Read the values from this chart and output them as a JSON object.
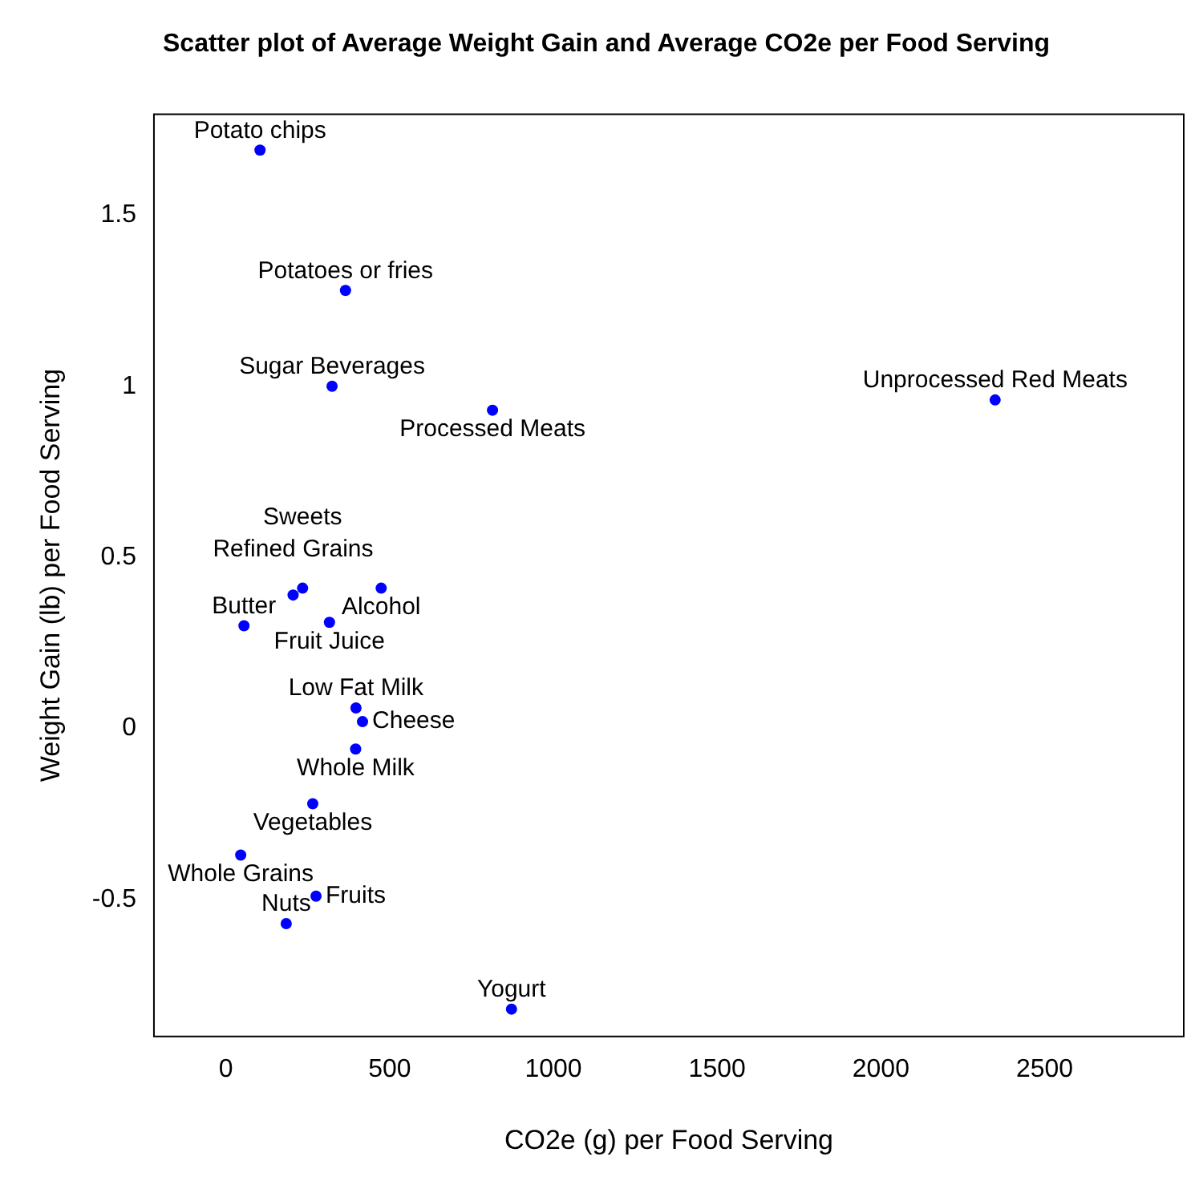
{
  "chart_data": {
    "type": "scatter",
    "title": "Scatter plot of Average Weight Gain and Average CO2e per Food Serving",
    "xlabel": "CO2e (g) per Food Serving",
    "ylabel": "Weight Gain (lb) per Food Serving",
    "x": [
      104,
      365,
      324,
      814,
      2349,
      205,
      234,
      474,
      55,
      316,
      397,
      417,
      396,
      265,
      45,
      275,
      184,
      872
    ],
    "series": [
      {
        "color": "#0000ff",
        "values": [
          1.69,
          1.28,
          1.0,
          0.93,
          0.96,
          0.39,
          0.41,
          0.41,
          0.3,
          0.31,
          0.06,
          0.02,
          -0.06,
          -0.22,
          -0.37,
          -0.49,
          -0.57,
          -0.82
        ]
      }
    ],
    "xlim": [
      -220,
      2925
    ],
    "ylim": [
      -0.9,
      1.795
    ],
    "xticks": [
      0,
      500,
      1000,
      1500,
      2000,
      2500
    ],
    "yticks": [
      -0.5,
      0.0,
      0.5,
      1.0,
      1.5
    ],
    "grid": false,
    "legend": false,
    "marker": "circle",
    "annotations": [
      {
        "text": "Potato chips",
        "x": 104,
        "y": 1.69
      },
      {
        "text": "Potatoes or fries",
        "x": 365,
        "y": 1.28
      },
      {
        "text": "Sugar Beverages",
        "x": 324,
        "y": 1.0
      },
      {
        "text": "Processed Meats",
        "x": 814,
        "y": 0.93
      },
      {
        "text": "Unprocessed Red Meats",
        "x": 2349,
        "y": 0.96
      },
      {
        "text": "Refined Grains",
        "x": 205,
        "y": 0.39
      },
      {
        "text": "Sweets",
        "x": 234,
        "y": 0.41
      },
      {
        "text": "Alcohol",
        "x": 474,
        "y": 0.41
      },
      {
        "text": "Butter",
        "x": 55,
        "y": 0.3
      },
      {
        "text": "Fruit Juice",
        "x": 316,
        "y": 0.31
      },
      {
        "text": "Low Fat Milk",
        "x": 397,
        "y": 0.06
      },
      {
        "text": "Cheese",
        "x": 417,
        "y": 0.02
      },
      {
        "text": "Whole Milk",
        "x": 396,
        "y": -0.06
      },
      {
        "text": "Vegetables",
        "x": 265,
        "y": -0.22
      },
      {
        "text": "Whole Grains",
        "x": 45,
        "y": -0.37
      },
      {
        "text": "Fruits",
        "x": 275,
        "y": -0.49
      },
      {
        "text": "Nuts",
        "x": 184,
        "y": -0.57
      },
      {
        "text": "Yogurt",
        "x": 872,
        "y": -0.82
      }
    ]
  }
}
